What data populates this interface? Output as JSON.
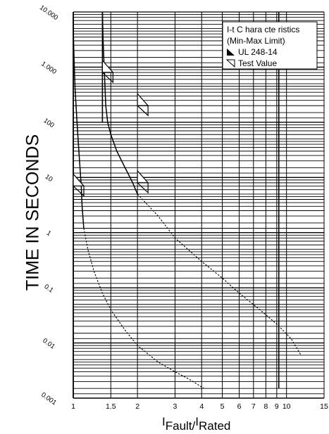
{
  "chart_data": {
    "type": "line",
    "title": "",
    "ylabel": "TIME IN SECONDS",
    "xlabel": {
      "prefix": "I",
      "sub1": "Fault",
      "slash": "/",
      "prefix2": "I",
      "sub2": "Rated"
    },
    "x_scale": "log",
    "y_scale": "log",
    "xlim": [
      1,
      15
    ],
    "ylim": [
      0.001,
      10000
    ],
    "x_ticks": [
      {
        "value": 1,
        "label": "1"
      },
      {
        "value": 1.5,
        "label": "1.5"
      },
      {
        "value": 2,
        "label": "2"
      },
      {
        "value": 3,
        "label": "3"
      },
      {
        "value": 4,
        "label": "4"
      },
      {
        "value": 5,
        "label": "5"
      },
      {
        "value": 6,
        "label": "6"
      },
      {
        "value": 7,
        "label": "7"
      },
      {
        "value": 8,
        "label": "8"
      },
      {
        "value": 9,
        "label": "9"
      },
      {
        "value": 10,
        "label": "10"
      },
      {
        "value": 15,
        "label": "15"
      }
    ],
    "y_ticks": [
      {
        "value": 0.001,
        "label": "0.001"
      },
      {
        "value": 0.01,
        "label": "0.01"
      },
      {
        "value": 0.1,
        "label": "0.1"
      },
      {
        "value": 1,
        "label": "1"
      },
      {
        "value": 10,
        "label": "10"
      },
      {
        "value": 100,
        "label": "100"
      },
      {
        "value": 1000,
        "label": "1.000"
      },
      {
        "value": 10000,
        "label": "10.000"
      }
    ],
    "grid": true,
    "legend_position": "top-right",
    "legend": {
      "title_line1": "I-t C hara cte ristics",
      "title_line2": "(Min-Max Limit)",
      "item_ul": "UL 248-14",
      "item_test": "Test Value"
    },
    "series": [
      {
        "style": "solid",
        "points": [
          [
            1.0,
            8000
          ],
          [
            1.003,
            3000
          ],
          [
            1.01,
            1200
          ],
          [
            1.02,
            400
          ],
          [
            1.035,
            150
          ],
          [
            1.05,
            60
          ],
          [
            1.07,
            20
          ],
          [
            1.09,
            7
          ],
          [
            1.1,
            3
          ],
          [
            1.12,
            1.2
          ]
        ]
      },
      {
        "style": "dashed",
        "points": [
          [
            1.12,
            1.2
          ],
          [
            1.17,
            0.5
          ],
          [
            1.25,
            0.2
          ],
          [
            1.37,
            0.08
          ],
          [
            1.5,
            0.04
          ],
          [
            1.75,
            0.017
          ],
          [
            2.0,
            0.009
          ],
          [
            2.5,
            0.0045
          ],
          [
            3.0,
            0.003
          ],
          [
            3.5,
            0.0022
          ],
          [
            4.1,
            0.0015
          ]
        ]
      },
      {
        "style": "solid",
        "points": [
          [
            1.37,
            10000
          ],
          [
            1.38,
            3000
          ],
          [
            1.4,
            800
          ],
          [
            1.42,
            200
          ],
          [
            1.45,
            100
          ],
          [
            1.5,
            60
          ],
          [
            1.6,
            30
          ],
          [
            1.75,
            15
          ],
          [
            1.9,
            8
          ],
          [
            2.0,
            5
          ]
        ]
      },
      {
        "style": "dashed",
        "points": [
          [
            2.0,
            5
          ],
          [
            2.5,
            2
          ],
          [
            3.0,
            0.8
          ],
          [
            4.0,
            0.3
          ],
          [
            5.0,
            0.15
          ],
          [
            6.0,
            0.08
          ],
          [
            7.5,
            0.04
          ],
          [
            9.0,
            0.022
          ],
          [
            10.5,
            0.012
          ],
          [
            11.7,
            0.006
          ]
        ]
      }
    ],
    "vertical_lines": [
      {
        "x": 1.0,
        "y_from": 0.001,
        "y_to": 10000
      },
      {
        "x": 1.37,
        "y_from": 100,
        "y_to": 10000
      },
      {
        "x": 9.2,
        "y_from": 0.0015,
        "y_to": 10000
      }
    ],
    "ul_limits": [
      {
        "x": 1.0,
        "y": 7
      },
      {
        "x": 1.37,
        "y": 800
      },
      {
        "x": 2.0,
        "y": 200
      },
      {
        "x": 2.0,
        "y": 8
      }
    ],
    "test_values": [
      {
        "x": 1.0,
        "y": 7
      },
      {
        "x": 1.37,
        "y": 800
      },
      {
        "x": 2.0,
        "y": 200
      },
      {
        "x": 2.0,
        "y": 8
      }
    ]
  }
}
